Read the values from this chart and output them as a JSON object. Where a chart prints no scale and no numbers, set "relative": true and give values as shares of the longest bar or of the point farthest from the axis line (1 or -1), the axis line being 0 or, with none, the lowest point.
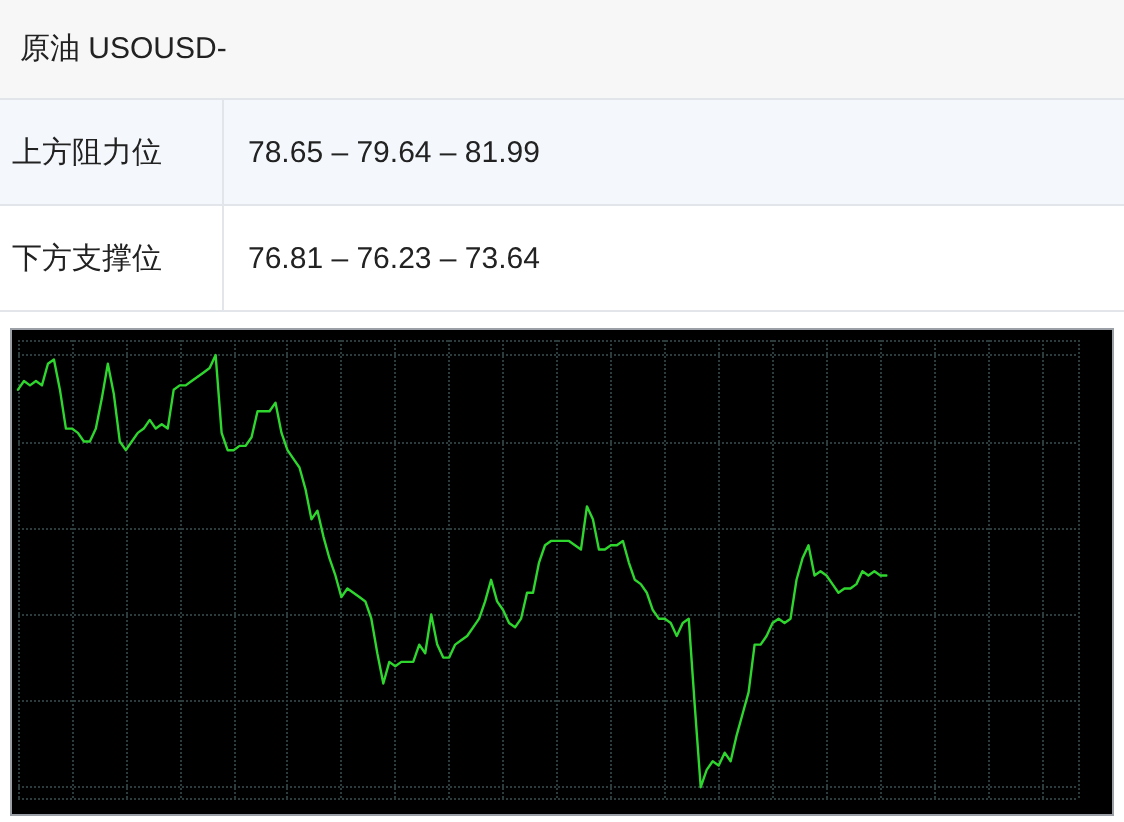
{
  "chart_data": {
    "type": "line",
    "title": "原油 USOUSD-",
    "annotations": [
      "上方阻力位",
      "78.65 – 79.64 – 81.99",
      "下方支撑位",
      "76.81 – 76.23 – 73.64"
    ],
    "relative": true,
    "grid": true,
    "marker": "none",
    "line_style": "solid",
    "color": "#2ed62e",
    "categories": [
      null,
      null,
      null,
      null,
      null,
      null,
      null,
      null,
      null,
      null,
      null,
      null,
      null,
      null,
      null,
      null,
      null,
      null,
      null,
      null,
      null,
      null,
      null,
      null,
      null,
      null,
      null,
      null,
      null,
      null,
      null,
      null,
      null,
      null,
      null,
      null,
      null,
      null,
      null,
      null,
      null,
      null,
      null,
      null,
      null,
      null,
      null,
      null,
      null,
      null,
      null,
      null,
      null,
      null,
      null,
      null,
      null,
      null,
      null,
      null,
      null,
      null,
      null,
      null,
      null,
      null,
      null,
      null,
      null,
      null,
      null,
      null,
      null,
      null,
      null,
      null,
      null,
      null,
      null,
      null,
      null,
      null,
      null,
      null,
      null,
      null,
      null,
      null,
      null,
      null,
      null,
      null,
      null,
      null,
      null,
      null,
      null,
      null,
      null,
      null,
      null,
      null,
      null,
      null,
      null,
      null,
      null,
      null,
      null,
      null,
      null,
      null,
      null,
      null,
      null,
      null,
      null,
      null,
      null,
      null,
      null,
      null,
      null,
      null,
      null,
      null,
      null,
      null,
      null,
      null,
      null,
      null,
      null,
      null,
      null,
      null,
      null,
      null,
      null,
      null,
      null,
      null,
      null,
      null,
      null,
      null,
      null,
      null,
      null,
      null,
      null,
      null,
      null,
      null,
      null,
      null,
      null,
      null,
      null,
      null,
      null,
      null,
      null,
      null,
      null,
      null,
      null,
      null,
      null,
      null,
      null,
      null,
      null,
      null,
      null,
      null,
      null,
      null
    ],
    "values": [
      0.92,
      0.94,
      0.93,
      0.94,
      0.93,
      0.98,
      0.99,
      0.92,
      0.83,
      0.83,
      0.82,
      0.8,
      0.8,
      0.83,
      0.9,
      0.98,
      0.91,
      0.8,
      0.78,
      0.8,
      0.82,
      0.83,
      0.85,
      0.83,
      0.84,
      0.83,
      0.92,
      0.93,
      0.93,
      0.94,
      0.95,
      0.96,
      0.97,
      1.0,
      0.82,
      0.78,
      0.78,
      0.79,
      0.79,
      0.81,
      0.87,
      0.87,
      0.87,
      0.89,
      0.82,
      0.78,
      0.76,
      0.74,
      0.69,
      0.62,
      0.64,
      0.58,
      0.53,
      0.49,
      0.44,
      0.46,
      0.45,
      0.44,
      0.43,
      0.39,
      0.31,
      0.24,
      0.29,
      0.28,
      0.29,
      0.29,
      0.29,
      0.33,
      0.31,
      0.4,
      0.33,
      0.3,
      0.3,
      0.33,
      0.34,
      0.35,
      0.37,
      0.39,
      0.43,
      0.48,
      0.43,
      0.41,
      0.38,
      0.37,
      0.39,
      0.45,
      0.45,
      0.52,
      0.56,
      0.57,
      0.57,
      0.57,
      0.57,
      0.56,
      0.55,
      0.65,
      0.62,
      0.55,
      0.55,
      0.56,
      0.56,
      0.57,
      0.52,
      0.48,
      0.47,
      0.45,
      0.41,
      0.39,
      0.39,
      0.38,
      0.35,
      0.38,
      0.39,
      0.19,
      0,
      0.04,
      0.06,
      0.05,
      0.08,
      0.06,
      0.12,
      0.17,
      0.22,
      0.33,
      0.33,
      0.35,
      0.38,
      0.39,
      0.38,
      0.39,
      0.48,
      0.53,
      0.56,
      0.49,
      0.5,
      0.49,
      0.47,
      0.45,
      0.46,
      0.46,
      0.47,
      0.5,
      0.49,
      0.5,
      0.49,
      0.49,
      null,
      null,
      null,
      null,
      null,
      null,
      null,
      null,
      null,
      null,
      null,
      null,
      null,
      null,
      null,
      null,
      null,
      null,
      null,
      null,
      null,
      null,
      null,
      null,
      null,
      null,
      null,
      null,
      null,
      null,
      null,
      null
    ]
  }
}
